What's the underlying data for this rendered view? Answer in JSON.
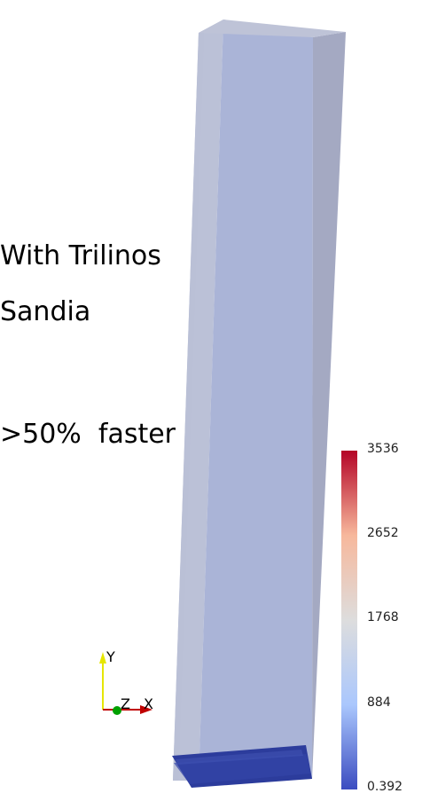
{
  "captions": {
    "line1": "With Trilinos",
    "line2": "Sandia",
    "line3": ">50%  faster"
  },
  "colorbar": {
    "ticks": [
      "3536",
      "2652",
      "1768",
      "884",
      "0.392"
    ],
    "min": 0.392,
    "max": 3536,
    "colormap": [
      "#3b4cc0",
      "#aac7fd",
      "#dddddd",
      "#f7b89c",
      "#b40426"
    ]
  },
  "axes": {
    "x_label": "X",
    "y_label": "Y",
    "z_label": "Z",
    "x_color": "#c00000",
    "y_color": "#e6e600",
    "z_color": "#00a000"
  },
  "colors": {
    "volume_face": "#a9b3d6",
    "volume_side": "#a2a7c0",
    "particles": "#2c3c9c"
  }
}
